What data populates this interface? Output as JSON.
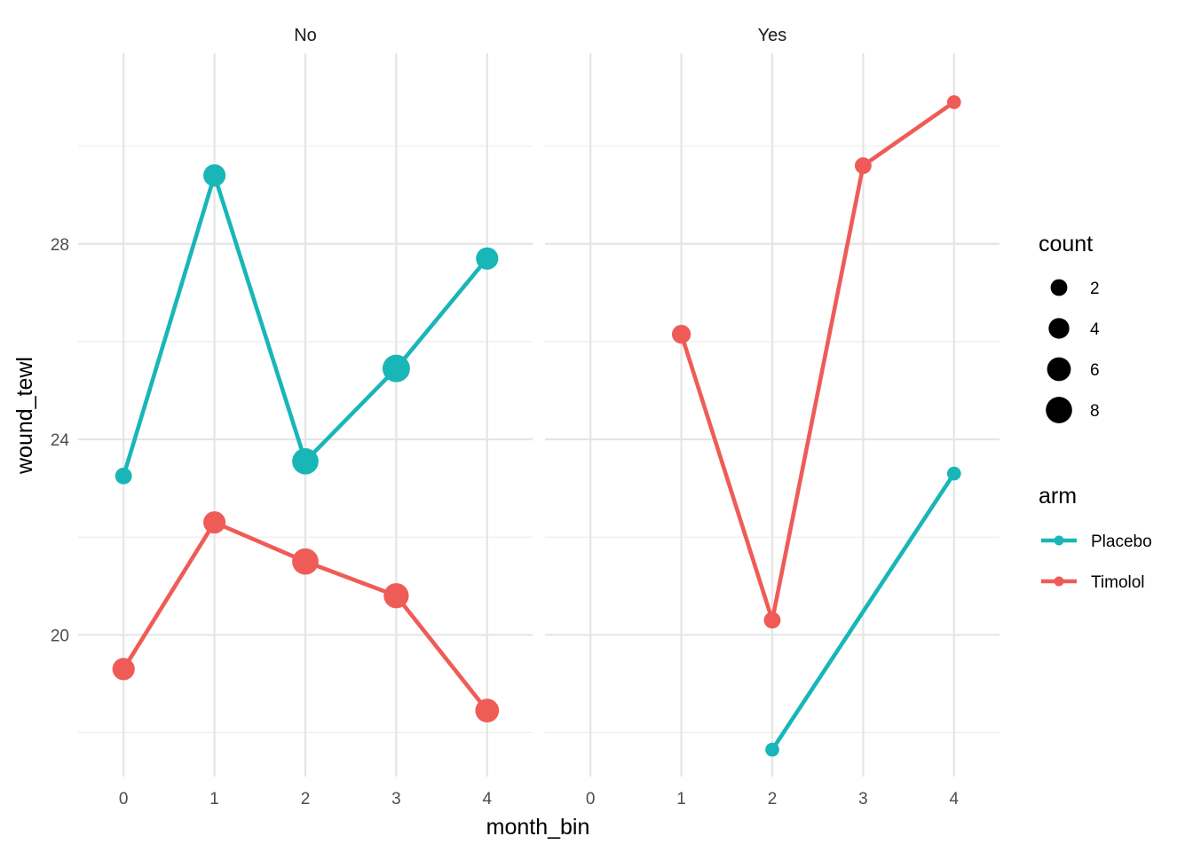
{
  "chart_data": {
    "type": "line",
    "xlabel": "month_bin",
    "ylabel": "wound_tewl",
    "x_ticks": [
      0,
      1,
      2,
      3,
      4
    ],
    "y_ticks": [
      20,
      24,
      28
    ],
    "xlim": [
      -0.5,
      4.5
    ],
    "ylim": [
      17.1,
      31.9
    ],
    "grid": true,
    "colors": {
      "Placebo": "#19b6b8",
      "Timolol": "#ef5c57"
    },
    "facets": [
      {
        "label": "No",
        "series": [
          {
            "name": "Placebo",
            "points": [
              {
                "x": 0,
                "y": 23.25,
                "count": 2
              },
              {
                "x": 1,
                "y": 29.4,
                "count": 5
              },
              {
                "x": 2,
                "y": 23.55,
                "count": 8
              },
              {
                "x": 3,
                "y": 25.45,
                "count": 9
              },
              {
                "x": 4,
                "y": 27.7,
                "count": 5
              }
            ]
          },
          {
            "name": "Timolol",
            "points": [
              {
                "x": 0,
                "y": 19.3,
                "count": 5
              },
              {
                "x": 1,
                "y": 22.3,
                "count": 5
              },
              {
                "x": 2,
                "y": 21.5,
                "count": 8
              },
              {
                "x": 3,
                "y": 20.8,
                "count": 7
              },
              {
                "x": 4,
                "y": 18.45,
                "count": 6
              }
            ]
          }
        ]
      },
      {
        "label": "Yes",
        "series": [
          {
            "name": "Placebo",
            "points": [
              {
                "x": 2,
                "y": 17.65,
                "count": 1
              },
              {
                "x": 4,
                "y": 23.3,
                "count": 1
              }
            ]
          },
          {
            "name": "Timolol",
            "points": [
              {
                "x": 1,
                "y": 26.15,
                "count": 3
              },
              {
                "x": 2,
                "y": 20.3,
                "count": 2
              },
              {
                "x": 3,
                "y": 29.6,
                "count": 2
              },
              {
                "x": 4,
                "y": 30.9,
                "count": 1
              }
            ]
          }
        ]
      }
    ],
    "legend": {
      "position": "right",
      "size": {
        "title": "count",
        "values": [
          2,
          4,
          6,
          8
        ]
      },
      "color": {
        "title": "arm",
        "entries": [
          "Placebo",
          "Timolol"
        ]
      }
    }
  }
}
